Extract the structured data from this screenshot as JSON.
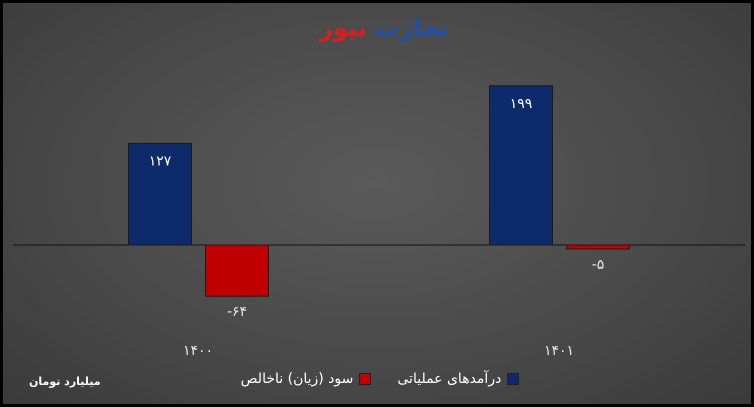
{
  "logo": {
    "part1": "تجارت",
    "part2": "نیوز",
    "color1": "#1f4fa8",
    "color2": "#d62020"
  },
  "unit_label": "میلیارد تومان",
  "colors": {
    "operating_revenue": "#0d2a6b",
    "net_profit": "#c00000"
  },
  "chart_data": {
    "type": "bar",
    "categories": [
      "۱۴۰۰",
      "۱۴۰۱"
    ],
    "series": [
      {
        "name": "درآمدهای عملیاتی",
        "values": [
          127,
          199
        ],
        "labels": [
          "۱۲۷",
          "۱۹۹"
        ]
      },
      {
        "name": "سود (زیان) ناخالص",
        "values": [
          -64,
          -5
        ],
        "labels": [
          "-۶۴",
          "-۵"
        ]
      }
    ],
    "ylim": [
      -105,
      205
    ],
    "grid": false,
    "legend": "bottom"
  }
}
